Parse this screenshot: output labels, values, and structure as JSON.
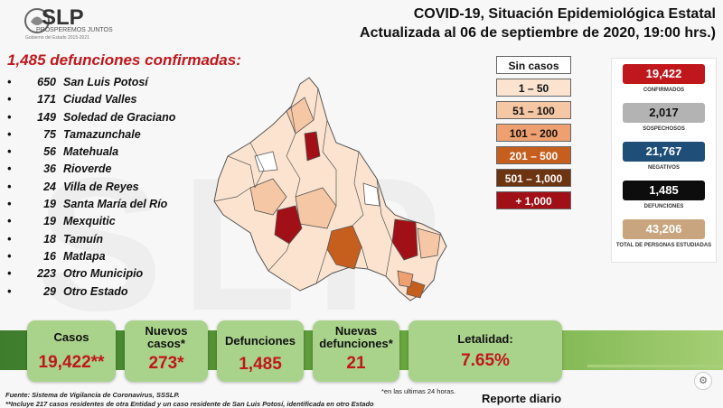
{
  "header": {
    "logo_text": "SLP",
    "logo_slogan": "PROSPEREMOS JUNTOS",
    "logo_subtitle": "Gobierno del Estado 2015-2021",
    "title_line1": "COVID-19, Situación Epidemiológica Estatal",
    "title_line2": "Actualizada al 06 de septiembre de 2020, 19:00 hrs.)"
  },
  "deaths": {
    "heading": "1,485 defunciones confirmadas:",
    "items": [
      {
        "count": "650",
        "name": "San Luis Potosí"
      },
      {
        "count": "171",
        "name": "Ciudad Valles"
      },
      {
        "count": "149",
        "name": "Soledad de Graciano"
      },
      {
        "count": "75",
        "name": "Tamazunchale"
      },
      {
        "count": "56",
        "name": "Matehuala"
      },
      {
        "count": "36",
        "name": "Rioverde"
      },
      {
        "count": "24",
        "name": "Villa de Reyes"
      },
      {
        "count": "19",
        "name": "Santa María del Río"
      },
      {
        "count": "19",
        "name": "Mexquitic"
      },
      {
        "count": "18",
        "name": "Tamuín"
      },
      {
        "count": "16",
        "name": "Matlapa"
      },
      {
        "count": "223",
        "name": "Otro Municipio"
      },
      {
        "count": "29",
        "name": "Otro Estado"
      }
    ]
  },
  "legend": {
    "items": [
      {
        "label": "Sin casos",
        "bg": "#ffffff",
        "fg": "#111111"
      },
      {
        "label": "1 – 50",
        "bg": "#fbe3cf",
        "fg": "#111111"
      },
      {
        "label": "51 – 100",
        "bg": "#f6c7a4",
        "fg": "#111111"
      },
      {
        "label": "101 – 200",
        "bg": "#eea070",
        "fg": "#111111"
      },
      {
        "label": "201 – 500",
        "bg": "#c65f1e",
        "fg": "#ffffff"
      },
      {
        "label": "501 – 1,000",
        "bg": "#6d3412",
        "fg": "#ffffff"
      },
      {
        "label": "+ 1,000",
        "bg": "#a01016",
        "fg": "#ffffff"
      }
    ]
  },
  "stats": [
    {
      "value": "19,422",
      "label": "CONFIRMADOS",
      "bg": "#c0171c",
      "fg": "#ffffff"
    },
    {
      "value": "2,017",
      "label": "SOSPECHOSOS",
      "bg": "#b3b3b3",
      "fg": "#111111"
    },
    {
      "value": "21,767",
      "label": "NEGATIVOS",
      "bg": "#1f4e79",
      "fg": "#ffffff"
    },
    {
      "value": "1,485",
      "label": "DEFUNCIONES",
      "bg": "#0d0d0d",
      "fg": "#ffffff"
    },
    {
      "value": "43,206",
      "label": "TOTAL DE PERSONAS ESTUDIADAS",
      "bg": "#c8a57e",
      "fg": "#ffffff"
    }
  ],
  "summary": {
    "casos": {
      "label": "Casos",
      "value": "19,422**"
    },
    "nuevos_casos": {
      "label": "Nuevos casos*",
      "value": "273*"
    },
    "defunciones": {
      "label": "Defunciones",
      "value": "1,485"
    },
    "nuevas_defunciones": {
      "label": "Nuevas defunciones*",
      "value": "21"
    },
    "letalidad": {
      "label": "Letalidad:",
      "value": "7.65%"
    }
  },
  "footer": {
    "source": "Fuente: Sistema de Vigilancia de Coronavirus, SSSLP.",
    "note_24h": "*en las ultimas 24 horas.",
    "note_cases": "**Incluye 217 casos residentes de otra Entidad y un caso residente de San Luis Potosí, identificada en otro Estado",
    "report": "Reporte diario"
  },
  "watermark": "SLP",
  "colors": {
    "accent_red": "#c0171c",
    "band_green": "#6aaa3f",
    "card_green": "#a9d28b"
  }
}
